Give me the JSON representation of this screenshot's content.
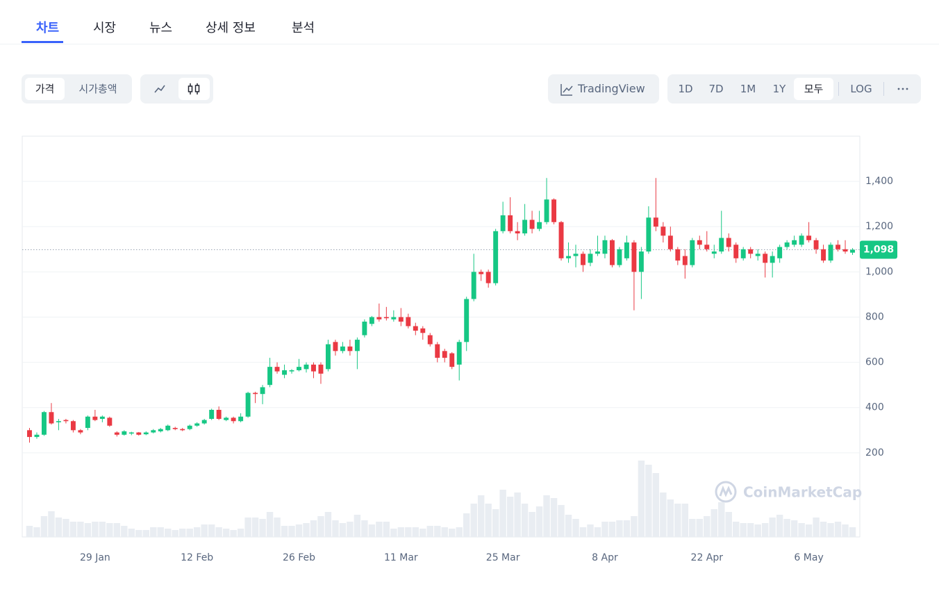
{
  "tabs": [
    "차트",
    "시장",
    "뉴스",
    "상세 정보",
    "분석"
  ],
  "toolbar": {
    "metric_toggle": [
      "가격",
      "시가총액"
    ],
    "tradingview": "TradingView",
    "ranges": [
      "1D",
      "7D",
      "1M",
      "1Y",
      "모두"
    ],
    "log": "LOG"
  },
  "chart_data": {
    "type": "candlestick",
    "watermark": "CoinMarketCap",
    "categories": [
      null,
      null,
      null,
      null,
      null,
      null,
      null,
      null,
      null,
      "29 Jan",
      null,
      null,
      null,
      null,
      null,
      null,
      null,
      null,
      null,
      null,
      null,
      null,
      null,
      "12 Feb",
      null,
      null,
      null,
      null,
      null,
      null,
      null,
      null,
      null,
      null,
      null,
      null,
      null,
      "26 Feb",
      null,
      null,
      null,
      null,
      null,
      null,
      null,
      null,
      null,
      null,
      null,
      null,
      null,
      "11 Mar",
      null,
      null,
      null,
      null,
      null,
      null,
      null,
      null,
      null,
      null,
      null,
      null,
      null,
      "25 Mar",
      null,
      null,
      null,
      null,
      null,
      null,
      null,
      null,
      null,
      null,
      null,
      null,
      null,
      "8 Apr",
      null,
      null,
      null,
      null,
      null,
      null,
      null,
      null,
      null,
      null,
      null,
      null,
      null,
      "22 Apr",
      null,
      null,
      null,
      null,
      null,
      null,
      null,
      null,
      null,
      null,
      null,
      null,
      null,
      "6 May",
      null,
      null,
      null,
      null,
      null,
      null
    ],
    "open": [
      300,
      270,
      280,
      380,
      335,
      345,
      340,
      300,
      310,
      360,
      350,
      355,
      290,
      280,
      285,
      290,
      282,
      290,
      295,
      300,
      310,
      305,
      305,
      320,
      330,
      350,
      390,
      345,
      355,
      340,
      360,
      465,
      460,
      500,
      580,
      545,
      560,
      565,
      570,
      590,
      590,
      570,
      690,
      650,
      670,
      650,
      720,
      770,
      800,
      800,
      790,
      800,
      800,
      760,
      750,
      720,
      680,
      650,
      640,
      590,
      690,
      880,
      1000,
      1000,
      950,
      1180,
      1250,
      1180,
      1170,
      1230,
      1190,
      1220,
      1320,
      1220,
      1060,
      1070,
      1080,
      1040,
      1080,
      1080,
      1140,
      1030,
      1060,
      1130,
      1000,
      1090,
      1240,
      1200,
      1160,
      1100,
      1070,
      1030,
      1140,
      1120,
      1080,
      1090,
      1150,
      1120,
      1060,
      1100,
      1070,
      1080,
      1040,
      1060,
      1110,
      1120,
      1120,
      1160,
      1140,
      1100,
      1050,
      1120,
      1100,
      1085
    ],
    "high": [
      310,
      290,
      385,
      420,
      350,
      350,
      345,
      305,
      365,
      390,
      365,
      360,
      295,
      300,
      293,
      292,
      295,
      305,
      310,
      325,
      315,
      310,
      325,
      335,
      350,
      395,
      405,
      360,
      360,
      375,
      470,
      470,
      500,
      620,
      600,
      590,
      570,
      615,
      600,
      600,
      600,
      700,
      700,
      690,
      700,
      710,
      790,
      805,
      860,
      845,
      830,
      840,
      815,
      775,
      760,
      730,
      690,
      660,
      645,
      700,
      890,
      1080,
      1010,
      1010,
      1190,
      1310,
      1330,
      1220,
      1300,
      1270,
      1270,
      1415,
      1325,
      1225,
      1130,
      1120,
      1090,
      1100,
      1160,
      1160,
      1145,
      1110,
      1160,
      1140,
      1110,
      1290,
      1415,
      1220,
      1200,
      1110,
      1100,
      1150,
      1160,
      1180,
      1120,
      1270,
      1170,
      1130,
      1110,
      1110,
      1100,
      1090,
      1090,
      1120,
      1140,
      1160,
      1170,
      1220,
      1150,
      1120,
      1130,
      1140,
      1140,
      1105
    ],
    "low": [
      245,
      262,
      275,
      325,
      300,
      330,
      290,
      282,
      300,
      340,
      335,
      315,
      272,
      276,
      278,
      276,
      278,
      286,
      290,
      296,
      300,
      296,
      300,
      315,
      325,
      345,
      345,
      340,
      330,
      335,
      355,
      420,
      415,
      490,
      550,
      530,
      550,
      560,
      555,
      530,
      505,
      560,
      630,
      640,
      630,
      570,
      710,
      760,
      780,
      785,
      780,
      760,
      750,
      720,
      700,
      670,
      600,
      600,
      570,
      520,
      650,
      870,
      960,
      930,
      940,
      1170,
      1170,
      1140,
      1160,
      1170,
      1180,
      1210,
      1210,
      1050,
      1040,
      1020,
      1000,
      1025,
      1070,
      1060,
      1020,
      1020,
      1050,
      830,
      880,
      1080,
      1180,
      1130,
      1090,
      1030,
      970,
      1020,
      1100,
      1090,
      1060,
      1080,
      1090,
      1040,
      1050,
      1060,
      1050,
      975,
      975,
      1040,
      1100,
      1110,
      1110,
      1130,
      1080,
      1040,
      1040,
      1090,
      1080,
      1075
    ],
    "close": [
      270,
      280,
      380,
      330,
      340,
      340,
      300,
      290,
      360,
      345,
      360,
      320,
      280,
      295,
      290,
      280,
      290,
      300,
      305,
      320,
      305,
      300,
      320,
      330,
      345,
      390,
      350,
      355,
      340,
      360,
      465,
      460,
      490,
      580,
      560,
      565,
      565,
      580,
      590,
      560,
      550,
      680,
      650,
      670,
      650,
      700,
      780,
      800,
      790,
      795,
      800,
      780,
      760,
      740,
      730,
      680,
      620,
      620,
      580,
      690,
      880,
      1000,
      990,
      950,
      1180,
      1250,
      1180,
      1170,
      1230,
      1190,
      1220,
      1320,
      1220,
      1060,
      1070,
      1080,
      1030,
      1080,
      1090,
      1140,
      1030,
      1100,
      1130,
      1000,
      1090,
      1240,
      1200,
      1160,
      1100,
      1050,
      1030,
      1140,
      1120,
      1100,
      1090,
      1150,
      1110,
      1060,
      1100,
      1080,
      1080,
      1040,
      1070,
      1110,
      1130,
      1140,
      1160,
      1140,
      1100,
      1050,
      1120,
      1100,
      1090,
      1098
    ],
    "volume": [
      16,
      14,
      30,
      37,
      28,
      26,
      22,
      22,
      20,
      22,
      22,
      20,
      20,
      16,
      12,
      10,
      10,
      14,
      14,
      12,
      10,
      12,
      12,
      14,
      18,
      18,
      14,
      12,
      10,
      12,
      28,
      28,
      26,
      36,
      28,
      16,
      16,
      18,
      20,
      24,
      30,
      36,
      24,
      20,
      22,
      32,
      24,
      18,
      22,
      22,
      12,
      14,
      14,
      14,
      12,
      16,
      16,
      14,
      12,
      14,
      34,
      48,
      60,
      48,
      40,
      68,
      58,
      64,
      48,
      36,
      44,
      60,
      56,
      46,
      32,
      26,
      14,
      18,
      14,
      22,
      22,
      24,
      24,
      30,
      110,
      104,
      92,
      64,
      54,
      48,
      48,
      26,
      26,
      30,
      40,
      50,
      36,
      22,
      20,
      20,
      18,
      20,
      28,
      32,
      26,
      24,
      20,
      18,
      28,
      22,
      20,
      22,
      18,
      14
    ],
    "up_color": "#16c784",
    "down_color": "#ea3943",
    "volume_color": "#e9edf2",
    "current_price": {
      "value": 1098,
      "label": "1,098"
    },
    "ylim": [
      -172,
      1600
    ],
    "yticks": [
      200,
      400,
      600,
      800,
      {
        "value": 1000,
        "label": "1,000"
      },
      {
        "value": 1200,
        "label": "1,200"
      },
      {
        "value": 1400,
        "label": "1,400"
      }
    ],
    "grid": true
  }
}
